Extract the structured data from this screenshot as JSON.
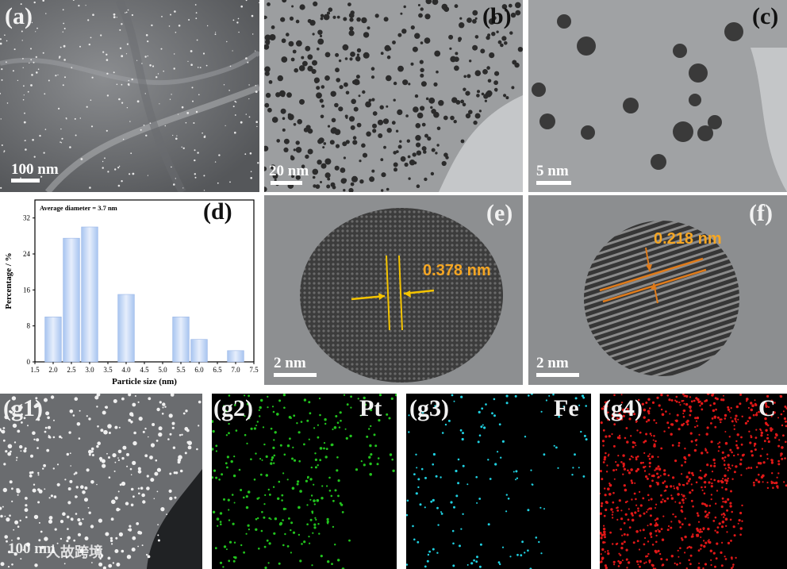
{
  "panels": {
    "a": {
      "label": "(a)",
      "scale": "100 nm"
    },
    "b": {
      "label": "(b)",
      "scale": "20 nm"
    },
    "c": {
      "label": "(c)",
      "scale": "5 nm"
    },
    "d": {
      "label": "(d)"
    },
    "e": {
      "label": "(e)",
      "scale": "2 nm",
      "lattice": "0.378 nm"
    },
    "f": {
      "label": "(f)",
      "scale": "2 nm",
      "lattice": "0.218 nm"
    },
    "g1": {
      "label": "(g1)",
      "scale": "100 nm",
      "watermark": "人故跨境"
    },
    "g2": {
      "label": "(g2)",
      "element": "Pt",
      "color": "#22c41e"
    },
    "g3": {
      "label": "(g3)",
      "element": "Fe",
      "color": "#1fd0e0"
    },
    "g4": {
      "label": "(g4)",
      "element": "C",
      "color": "#e01818"
    }
  },
  "chart_data": {
    "type": "bar",
    "annotation": "Average diameter = 3.7 nm",
    "xlabel": "Particle size (nm)",
    "ylabel": "Percentage / %",
    "x": [
      2.0,
      2.5,
      3.0,
      3.5,
      4.0,
      4.5,
      5.0,
      5.5,
      6.0,
      6.5,
      7.0
    ],
    "values": [
      10,
      27.5,
      30,
      0,
      15,
      0,
      0,
      10,
      5,
      0,
      2.5
    ],
    "xlim": [
      1.5,
      7.5
    ],
    "ylim": [
      0,
      36
    ],
    "xticks": [
      "1.5",
      "2.0",
      "2.5",
      "3.0",
      "3.5",
      "4.0",
      "4.5",
      "5.0",
      "5.5",
      "6.0",
      "6.5",
      "7.0",
      "7.5"
    ],
    "yticks": [
      "0",
      "8",
      "16",
      "24",
      "32"
    ],
    "bar_color": "#bcd3f5"
  }
}
